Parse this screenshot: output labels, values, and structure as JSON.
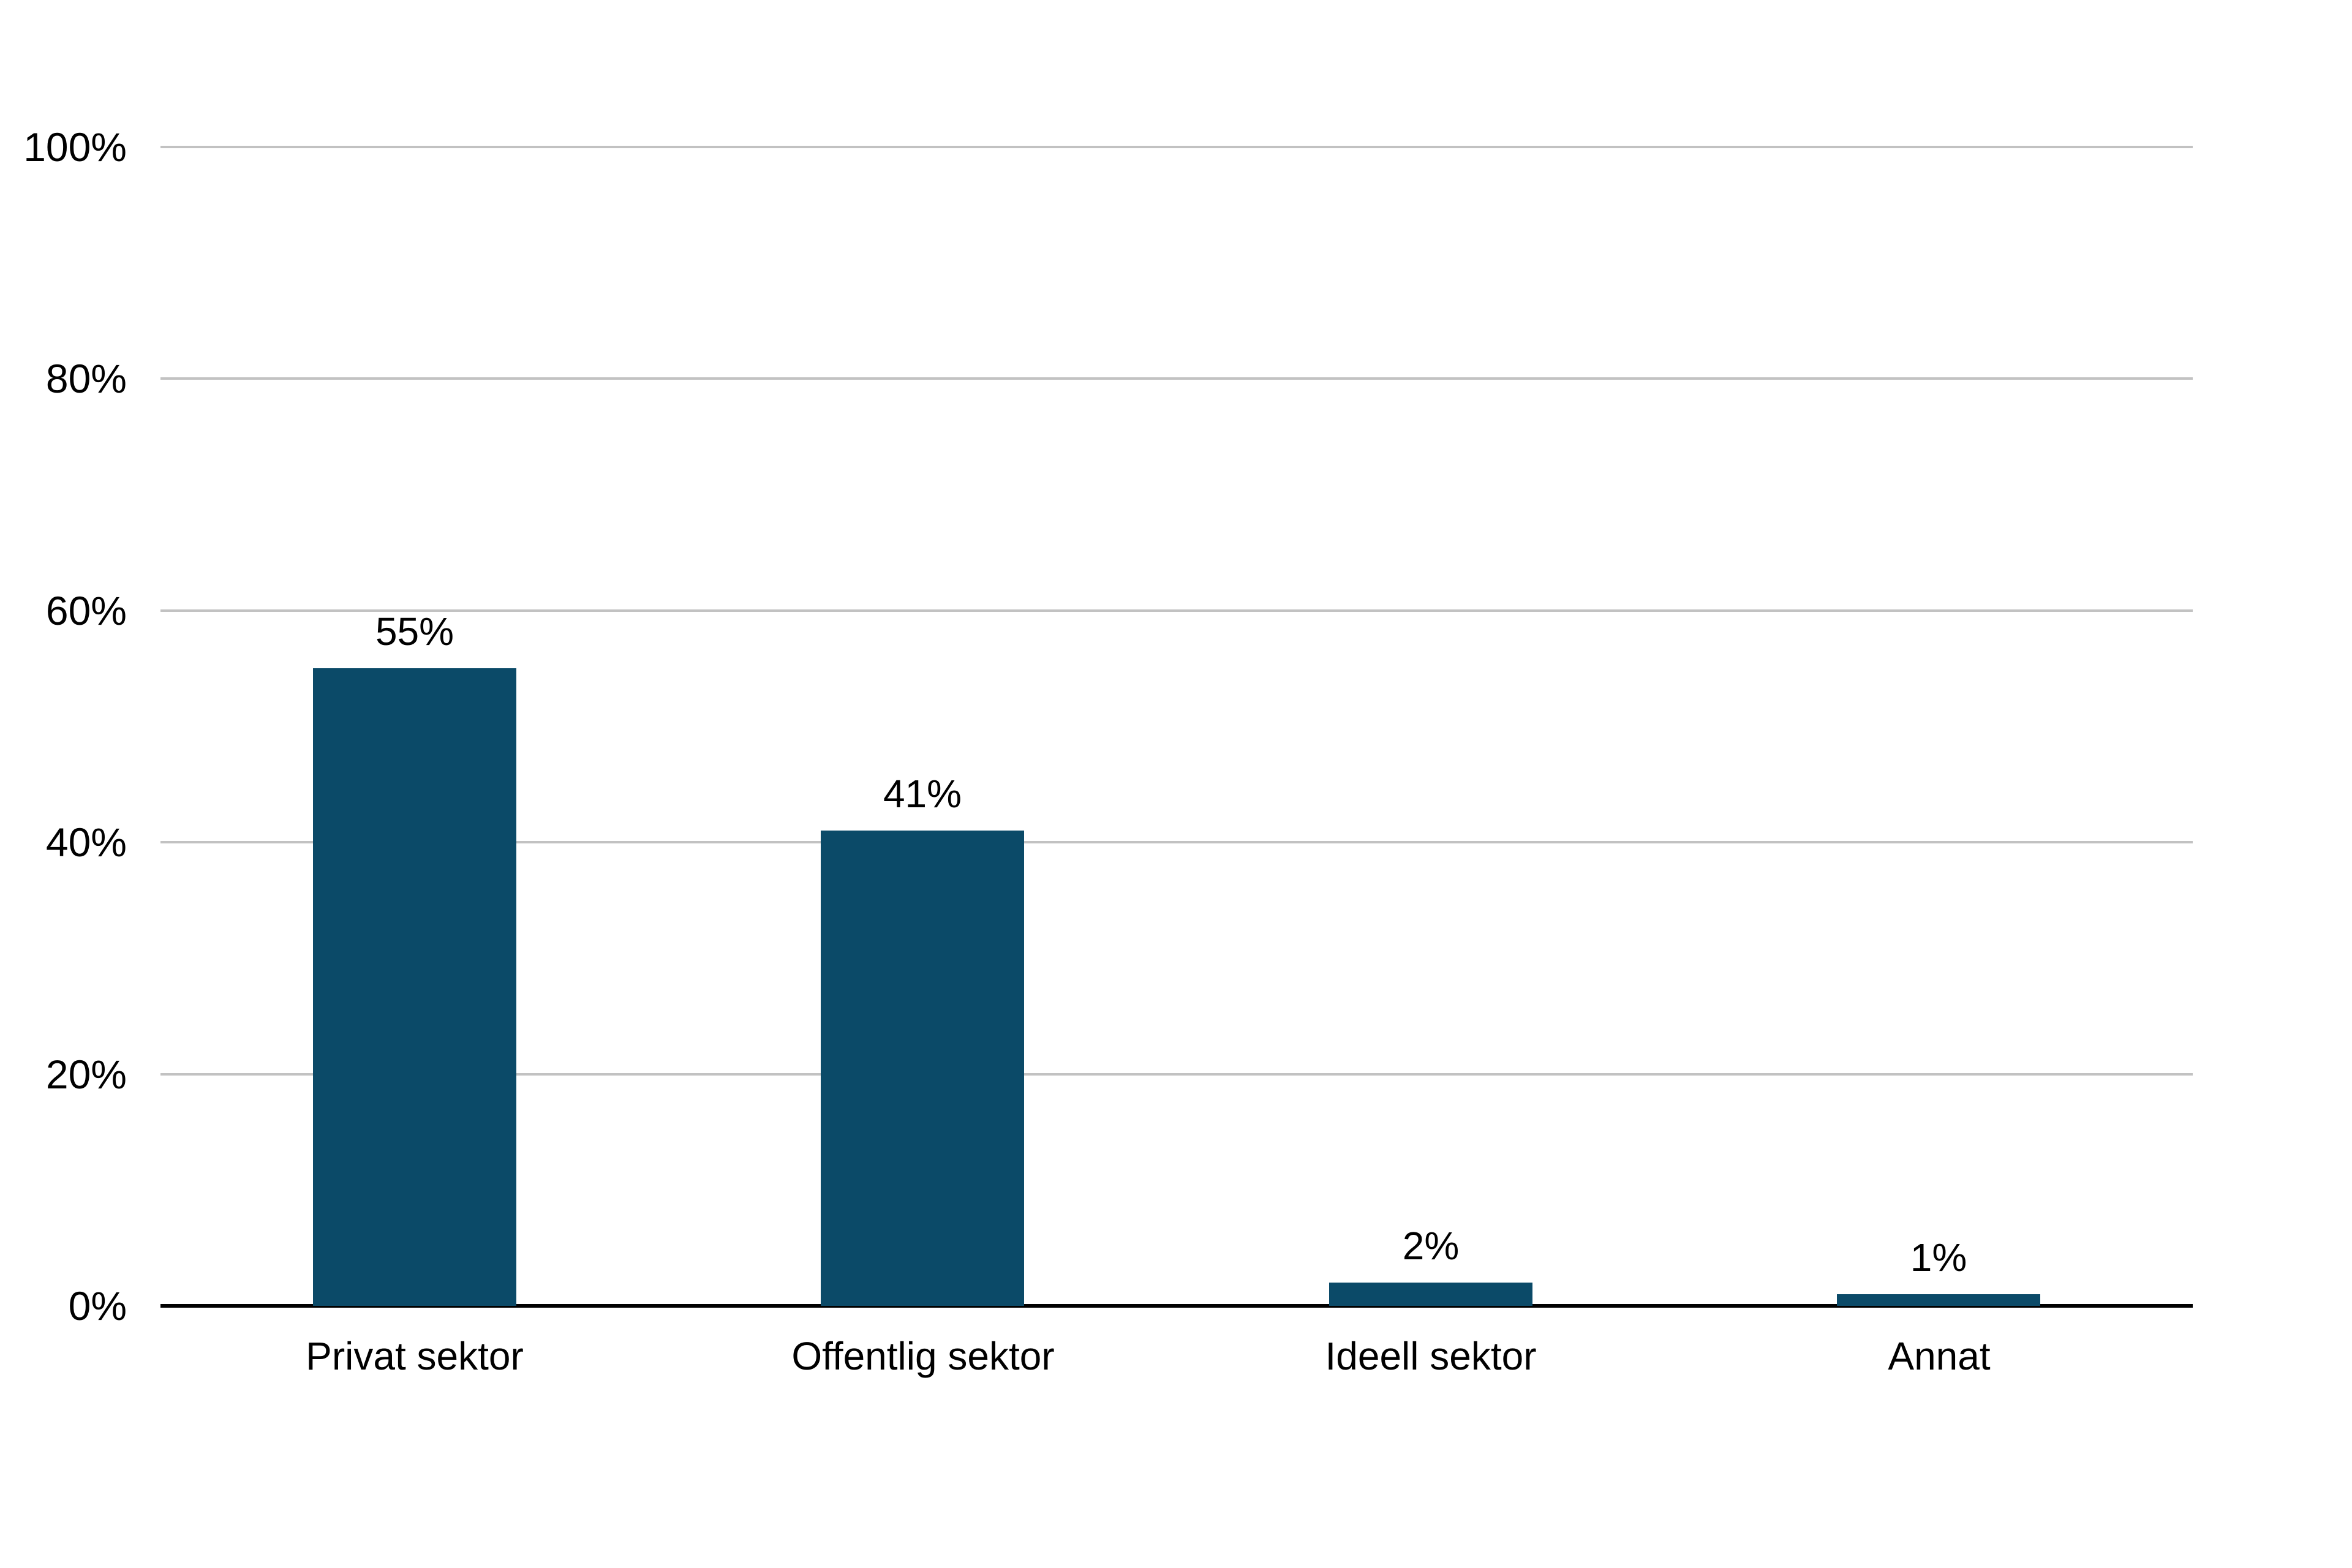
{
  "chart_data": {
    "type": "bar",
    "title": "",
    "xlabel": "",
    "ylabel": "",
    "categories": [
      "Privat sektor",
      "Offentlig sektor",
      "Ideell sektor",
      "Annat"
    ],
    "values": [
      55,
      41,
      2,
      1
    ],
    "value_labels": [
      "55%",
      "41%",
      "2%",
      "1%"
    ],
    "ylim": [
      0,
      100
    ],
    "y_ticks": [
      {
        "value": 0,
        "label": "0%"
      },
      {
        "value": 20,
        "label": "20%"
      },
      {
        "value": 40,
        "label": "40%"
      },
      {
        "value": 60,
        "label": "60%"
      },
      {
        "value": 80,
        "label": "80%"
      },
      {
        "value": 100,
        "label": "100%"
      }
    ],
    "grid": true,
    "legend": false,
    "colors": {
      "bar": "#0b4a68",
      "gridline": "#c2c2c2",
      "axis": "#000000",
      "text": "#000000",
      "background": "#ffffff"
    }
  }
}
